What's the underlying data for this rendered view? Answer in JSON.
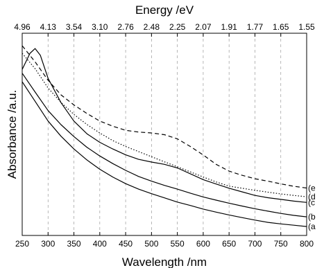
{
  "chart_data": {
    "type": "line",
    "title": "",
    "xlabel": "Wavelength /nm",
    "ylabel": "Absorbance /a.u.",
    "top_axis_label": "Energy /eV",
    "xlim": [
      250,
      800
    ],
    "ylim": [
      0,
      1
    ],
    "x_ticks": [
      "250",
      "300",
      "350",
      "400",
      "450",
      "500",
      "550",
      "600",
      "650",
      "700",
      "750",
      "800"
    ],
    "top_ticks": [
      {
        "wavelength": 250,
        "label": "4.96"
      },
      {
        "wavelength": 300,
        "label": "4.13"
      },
      {
        "wavelength": 350,
        "label": "3.54"
      },
      {
        "wavelength": 400,
        "label": "3.10"
      },
      {
        "wavelength": 450,
        "label": "2.76"
      },
      {
        "wavelength": 500,
        "label": "2.48"
      },
      {
        "wavelength": 550,
        "label": "2.25"
      },
      {
        "wavelength": 600,
        "label": "2.07"
      },
      {
        "wavelength": 650,
        "label": "1.91"
      },
      {
        "wavelength": 700,
        "label": "1.77"
      },
      {
        "wavelength": 750,
        "label": "1.65"
      },
      {
        "wavelength": 800,
        "label": "1.55"
      }
    ],
    "grid": "vertical-dashed",
    "series": [
      {
        "label": "(a",
        "style": "solid",
        "x": [
          250,
          275,
          300,
          325,
          350,
          375,
          400,
          425,
          450,
          475,
          500,
          525,
          550,
          575,
          600,
          625,
          650,
          675,
          700,
          725,
          750,
          775,
          800
        ],
        "y": [
          0.81,
          0.707,
          0.603,
          0.523,
          0.456,
          0.398,
          0.349,
          0.308,
          0.273,
          0.244,
          0.22,
          0.198,
          0.176,
          0.158,
          0.139,
          0.123,
          0.108,
          0.094,
          0.081,
          0.069,
          0.061,
          0.054,
          0.047
        ]
      },
      {
        "label": "(b",
        "style": "solid",
        "x": [
          250,
          275,
          300,
          325,
          350,
          375,
          400,
          425,
          450,
          475,
          500,
          525,
          550,
          575,
          600,
          625,
          650,
          675,
          700,
          725,
          750,
          775,
          800
        ],
        "y": [
          0.855,
          0.756,
          0.658,
          0.584,
          0.521,
          0.465,
          0.419,
          0.379,
          0.343,
          0.311,
          0.286,
          0.264,
          0.244,
          0.223,
          0.203,
          0.186,
          0.17,
          0.155,
          0.141,
          0.128,
          0.116,
          0.106,
          0.098
        ]
      },
      {
        "label": "(c",
        "style": "solid",
        "x": [
          250,
          265,
          275,
          285,
          300,
          325,
          350,
          375,
          400,
          425,
          450,
          475,
          500,
          525,
          550,
          575,
          600,
          625,
          650,
          675,
          700,
          725,
          750,
          775,
          800
        ],
        "y": [
          0.875,
          0.96,
          0.985,
          0.95,
          0.828,
          0.7,
          0.603,
          0.536,
          0.491,
          0.456,
          0.425,
          0.401,
          0.387,
          0.375,
          0.356,
          0.325,
          0.294,
          0.271,
          0.249,
          0.23,
          0.211,
          0.199,
          0.19,
          0.181,
          0.174
        ]
      },
      {
        "label": "(d",
        "style": "dotted",
        "x": [
          250,
          275,
          300,
          325,
          350,
          375,
          400,
          425,
          450,
          475,
          500,
          525,
          550,
          575,
          600,
          625,
          650,
          675,
          700,
          725,
          750,
          775,
          800
        ],
        "y": [
          0.96,
          0.879,
          0.777,
          0.701,
          0.638,
          0.585,
          0.54,
          0.5,
          0.469,
          0.442,
          0.415,
          0.388,
          0.362,
          0.335,
          0.308,
          0.282,
          0.26,
          0.249,
          0.238,
          0.228,
          0.219,
          0.211,
          0.204
        ]
      },
      {
        "label": "(e",
        "style": "dashed",
        "x": [
          250,
          275,
          300,
          325,
          350,
          375,
          400,
          425,
          450,
          475,
          500,
          525,
          550,
          575,
          600,
          625,
          650,
          675,
          700,
          725,
          750,
          775,
          800
        ],
        "y": [
          1.0,
          0.915,
          0.818,
          0.741,
          0.688,
          0.643,
          0.603,
          0.576,
          0.554,
          0.545,
          0.54,
          0.531,
          0.509,
          0.469,
          0.424,
          0.375,
          0.339,
          0.317,
          0.299,
          0.286,
          0.272,
          0.259,
          0.25
        ]
      }
    ]
  }
}
